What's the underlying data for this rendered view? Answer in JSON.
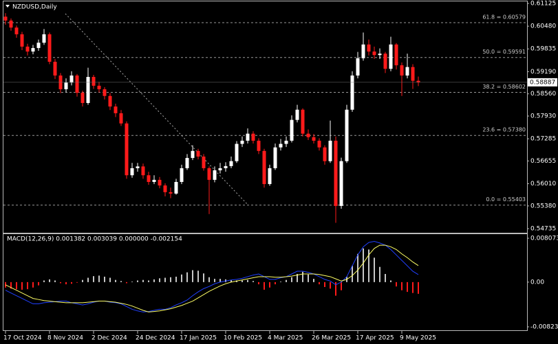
{
  "chart_data": [
    {
      "type": "candlestick",
      "title": "NZDUSD,Daily",
      "categories": [
        "17 Oct 2024",
        null,
        null,
        null,
        null,
        null,
        null,
        null,
        "8 Nov 2024",
        null,
        null,
        null,
        null,
        null,
        null,
        null,
        "2 Dec 2024",
        null,
        null,
        null,
        null,
        null,
        null,
        null,
        "24 Dec 2024",
        null,
        null,
        null,
        null,
        null,
        null,
        null,
        "17 Jan 2025",
        null,
        null,
        null,
        null,
        null,
        null,
        null,
        "10 Feb 2025",
        null,
        null,
        null,
        null,
        null,
        null,
        null,
        "4 Mar 2025",
        null,
        null,
        null,
        null,
        null,
        null,
        null,
        "26 Mar 2025",
        null,
        null,
        null,
        null,
        null,
        null,
        null,
        "17 Apr 2025",
        null,
        null,
        null,
        null,
        null,
        null,
        null,
        "9 May 2025",
        null,
        null,
        null
      ],
      "open": [
        0.6075,
        0.6064,
        0.6044,
        0.6025,
        0.599,
        0.5976,
        0.5986,
        0.6001,
        0.6025,
        0.5947,
        0.5908,
        0.5869,
        0.5888,
        0.5908,
        0.5859,
        0.583,
        0.5904,
        0.5879,
        0.5869,
        0.585,
        0.582,
        0.5801,
        0.5772,
        0.5625,
        0.5645,
        0.565,
        0.5625,
        0.5606,
        0.5612,
        0.5596,
        0.5577,
        0.5573,
        0.5606,
        0.5645,
        0.5674,
        0.5694,
        0.5678,
        0.5645,
        0.5612,
        0.5639,
        0.5645,
        0.5651,
        0.5665,
        0.5714,
        0.5723,
        0.5743,
        0.5723,
        0.5694,
        0.56,
        0.5645,
        0.5704,
        0.5714,
        0.5723,
        0.5782,
        0.5811,
        0.5743,
        0.5733,
        0.5723,
        0.5704,
        0.5665,
        0.5723,
        0.5538,
        0.5665,
        0.5811,
        0.5908,
        0.5957,
        0.5996,
        0.5976,
        0.5966,
        0.597,
        0.5927,
        0.5996,
        0.5937,
        0.5908,
        0.5932,
        0.5893
      ],
      "high": [
        0.6085,
        0.607,
        0.605,
        0.6032,
        0.5998,
        0.5995,
        0.601,
        0.604,
        0.603,
        0.5955,
        0.5915,
        0.59,
        0.592,
        0.5912,
        0.5865,
        0.593,
        0.591,
        0.589,
        0.5875,
        0.5858,
        0.5828,
        0.581,
        0.5778,
        0.566,
        0.566,
        0.5658,
        0.5635,
        0.5625,
        0.562,
        0.5602,
        0.559,
        0.5615,
        0.5655,
        0.5685,
        0.571,
        0.57,
        0.5685,
        0.565,
        0.565,
        0.566,
        0.5662,
        0.5678,
        0.5722,
        0.5735,
        0.5758,
        0.575,
        0.573,
        0.57,
        0.5655,
        0.5715,
        0.5728,
        0.5735,
        0.5795,
        0.5825,
        0.5815,
        0.5755,
        0.5742,
        0.573,
        0.571,
        0.578,
        0.5735,
        0.5675,
        0.5825,
        0.592,
        0.5975,
        0.603,
        0.601,
        0.599,
        0.5985,
        0.5975,
        0.6018,
        0.6,
        0.5945,
        0.597,
        0.594,
        0.5905
      ],
      "low": [
        0.6052,
        0.6035,
        0.6015,
        0.598,
        0.5965,
        0.5968,
        0.5978,
        0.5995,
        0.594,
        0.5898,
        0.5858,
        0.586,
        0.588,
        0.5848,
        0.582,
        0.5825,
        0.587,
        0.586,
        0.584,
        0.581,
        0.579,
        0.5765,
        0.5615,
        0.5618,
        0.5635,
        0.5615,
        0.5598,
        0.56,
        0.5588,
        0.5565,
        0.556,
        0.557,
        0.56,
        0.564,
        0.5668,
        0.567,
        0.5638,
        0.5515,
        0.5605,
        0.563,
        0.5635,
        0.5645,
        0.566,
        0.5705,
        0.5715,
        0.5715,
        0.5685,
        0.559,
        0.5595,
        0.564,
        0.5695,
        0.5705,
        0.5718,
        0.5775,
        0.5735,
        0.5725,
        0.5715,
        0.5695,
        0.5655,
        0.566,
        0.549,
        0.553,
        0.566,
        0.5805,
        0.59,
        0.595,
        0.5965,
        0.5955,
        0.5955,
        0.5915,
        0.592,
        0.5925,
        0.585,
        0.59,
        0.587,
        0.5878
      ],
      "close": [
        0.6064,
        0.6044,
        0.6025,
        0.599,
        0.5976,
        0.5986,
        0.6001,
        0.6025,
        0.5947,
        0.5908,
        0.5869,
        0.5888,
        0.5908,
        0.5859,
        0.583,
        0.5904,
        0.5879,
        0.5869,
        0.585,
        0.582,
        0.5801,
        0.5772,
        0.5625,
        0.5645,
        0.565,
        0.5625,
        0.5606,
        0.5612,
        0.5596,
        0.5577,
        0.5573,
        0.5606,
        0.5645,
        0.5674,
        0.5694,
        0.5678,
        0.5645,
        0.5612,
        0.5639,
        0.5645,
        0.5651,
        0.5665,
        0.5714,
        0.5723,
        0.5743,
        0.5723,
        0.5694,
        0.56,
        0.5645,
        0.5704,
        0.5714,
        0.5723,
        0.5782,
        0.5811,
        0.5743,
        0.5733,
        0.5723,
        0.5704,
        0.5665,
        0.5723,
        0.5538,
        0.5665,
        0.5811,
        0.5908,
        0.5957,
        0.5996,
        0.5976,
        0.5966,
        0.597,
        0.5927,
        0.5996,
        0.5937,
        0.5908,
        0.5932,
        0.5893,
        0.58887
      ],
      "up_color": "#ffffff",
      "down_color": "#ff1a1a",
      "ylim": [
        0.54735,
        0.61125
      ],
      "yticks": [
        0.61125,
        {
          "value": 0.6048,
          "label": "0.60480"
        },
        0.59835,
        {
          "value": 0.5919,
          "label": "0.59190"
        },
        {
          "value": 0.5856,
          "label": "0.58560"
        },
        {
          "value": 0.5793,
          "label": "0.57930"
        },
        0.57285,
        0.56655,
        {
          "value": 0.5601,
          "label": "0.56010"
        },
        {
          "value": 0.5538,
          "label": "0.55380"
        },
        0.54735
      ],
      "levels": [
        {
          "label": "61.8 = 0.60579",
          "value": 0.60579
        },
        {
          "label": "50.0 = 0.59591",
          "value": 0.59591
        },
        {
          "label": "38.2 = 0.58602",
          "value": 0.58602
        },
        {
          "label": "23.6 = 0.57380",
          "value": 0.5738
        },
        {
          "label": "0.0 = 0.55403",
          "value": 0.55403
        }
      ],
      "last_price": 0.58887
    },
    {
      "type": "macd",
      "title": "MACD(12,26,9) 0.001382 0.003039 0.000000 -0.002154",
      "histogram": {
        "up_color": "#c8c8c8",
        "down_color": "#ff1a1a",
        "values": [
          -0.001,
          -0.0012,
          -0.0013,
          -0.0014,
          -0.0013,
          -0.001,
          -0.0006,
          0.0003,
          0.0005,
          0.0003,
          -0.0002,
          -0.0004,
          -0.0003,
          -0.0001,
          0.0004,
          0.0008,
          0.0011,
          0.0012,
          0.001,
          0.0008,
          0.0004,
          0.0002,
          -0.0002,
          0.0001,
          0.0003,
          0.0004,
          0.0003,
          0.0005,
          0.0007,
          0.0008,
          0.0009,
          0.001,
          0.0014,
          0.0018,
          0.0022,
          0.0021,
          0.0016,
          0.0009,
          0.0006,
          0.0006,
          0.0005,
          0.0004,
          0.0003,
          0.0003,
          0.0004,
          0.0002,
          -0.0004,
          -0.0014,
          -0.001,
          -0.0004,
          0.0001,
          0.0004,
          0.0009,
          0.0015,
          0.0019,
          0.0014,
          0.0006,
          -0.0004,
          -0.0009,
          -0.0012,
          -0.0025,
          -0.0015,
          0.001,
          0.003,
          0.0052,
          0.0062,
          0.006,
          0.0045,
          0.0028,
          0.0015,
          0.0003,
          -0.0008,
          -0.0015,
          -0.0018,
          -0.002,
          -0.002154
        ]
      },
      "lines": [
        {
          "color": "#2040ff",
          "values": [
            -0.0015,
            -0.002,
            -0.0025,
            -0.003,
            -0.0035,
            -0.004,
            -0.004,
            -0.0038,
            -0.0037,
            -0.0036,
            -0.0035,
            -0.0035,
            -0.0038,
            -0.004,
            -0.0042,
            -0.004,
            -0.0037,
            -0.0035,
            -0.0035,
            -0.0037,
            -0.0038,
            -0.004,
            -0.0045,
            -0.005,
            -0.0053,
            -0.0055,
            -0.0054,
            -0.0052,
            -0.005,
            -0.005,
            -0.0047,
            -0.0042,
            -0.0038,
            -0.0033,
            -0.0025,
            -0.0018,
            -0.0012,
            -0.0008,
            -0.0003,
            0.0,
            0.0002,
            0.0004,
            0.0005,
            0.0007,
            0.001,
            0.0013,
            0.0015,
            0.001,
            0.0005,
            0.0005,
            0.0008,
            0.001,
            0.0015,
            0.002,
            0.002,
            0.0018,
            0.0015,
            0.001,
            0.0005,
            0.0002,
            -0.0005,
            0.0,
            0.001,
            0.003,
            0.005,
            0.0065,
            0.0073,
            0.0075,
            0.0072,
            0.0068,
            0.006,
            0.005,
            0.004,
            0.003,
            0.002,
            0.001382
          ]
        },
        {
          "color": "#ffff66",
          "values": [
            -0.0005,
            -0.001,
            -0.0015,
            -0.002,
            -0.0025,
            -0.003,
            -0.0032,
            -0.0034,
            -0.0035,
            -0.0036,
            -0.0037,
            -0.0038,
            -0.0038,
            -0.0038,
            -0.0038,
            -0.0037,
            -0.0036,
            -0.0035,
            -0.0035,
            -0.0036,
            -0.0037,
            -0.0039,
            -0.0041,
            -0.0044,
            -0.0048,
            -0.0052,
            -0.0055,
            -0.0054,
            -0.0053,
            -0.0051,
            -0.0049,
            -0.0046,
            -0.0043,
            -0.0039,
            -0.0035,
            -0.0029,
            -0.0023,
            -0.0017,
            -0.0012,
            -0.0007,
            -0.0003,
            0.0,
            0.0002,
            0.0004,
            0.0006,
            0.0008,
            0.001,
            0.001,
            0.001,
            0.0009,
            0.0009,
            0.001,
            0.0011,
            0.0013,
            0.0015,
            0.0015,
            0.0015,
            0.0014,
            0.0012,
            0.001,
            0.0006,
            0.0002,
            0.0005,
            0.0012,
            0.0022,
            0.0035,
            0.005,
            0.0062,
            0.0068,
            0.0068,
            0.0065,
            0.006,
            0.0052,
            0.0045,
            0.0037,
            0.003039
          ]
        }
      ],
      "ylim": [
        -0.008233,
        0.008073
      ],
      "yticks": [
        0.008073,
        {
          "value": 0,
          "label": "0.00"
        },
        -0.008233
      ]
    }
  ]
}
